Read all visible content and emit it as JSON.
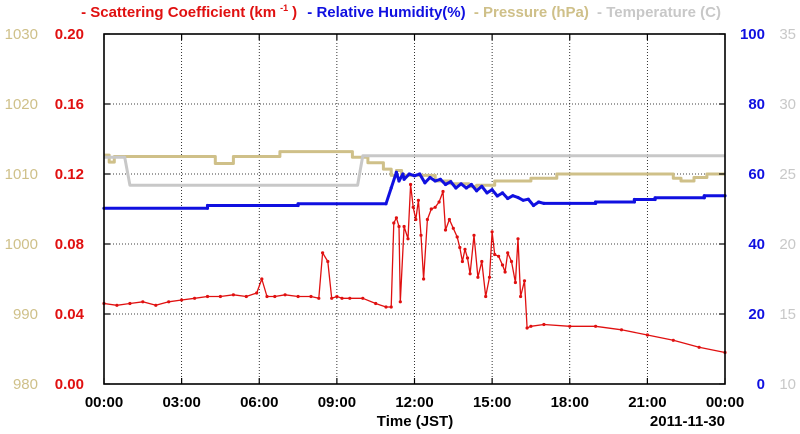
{
  "legend": [
    {
      "label": "- Scattering Coefficient (km",
      "sup": "-1",
      "close": ")",
      "color": "#e01010"
    },
    {
      "label": "- Relative Humidity(%)",
      "color": "#1010e0"
    },
    {
      "label": "- Pressure (hPa)",
      "color": "#cfc089"
    },
    {
      "label": "- Temperature (C)",
      "color": "#c8c8c8"
    }
  ],
  "chart_data": {
    "type": "line",
    "xlabel": "Time (JST)",
    "date_label": "2011-11-30",
    "x_ticks": [
      "00:00",
      "03:00",
      "06:00",
      "09:00",
      "12:00",
      "15:00",
      "18:00",
      "21:00",
      "00:00"
    ],
    "xlim": [
      0,
      24
    ],
    "grid": true,
    "axes": {
      "pressure": {
        "ticks": [
          "980",
          "990",
          "1000",
          "1010",
          "1020",
          "1030"
        ],
        "range": [
          980,
          1030
        ],
        "color": "#cfc089"
      },
      "scattering": {
        "ticks": [
          "0.00",
          "0.04",
          "0.08",
          "0.12",
          "0.16",
          "0.20"
        ],
        "range": [
          0,
          0.2
        ],
        "color": "#e01010"
      },
      "humidity": {
        "ticks": [
          "0",
          "20",
          "40",
          "60",
          "80",
          "100"
        ],
        "range": [
          0,
          100
        ],
        "color": "#1010e0"
      },
      "temperature": {
        "ticks": [
          "10",
          "15",
          "20",
          "25",
          "30",
          "35"
        ],
        "range": [
          10,
          35
        ],
        "color": "#c8c8c8"
      }
    },
    "series": [
      {
        "name": "Pressure (hPa)",
        "axis": "pressure",
        "color": "#cfc089",
        "x": [
          0,
          0.2,
          0.2,
          0.4,
          0.4,
          4.3,
          4.3,
          5.0,
          5.0,
          6.8,
          6.8,
          9.6,
          9.6,
          10.2,
          10.2,
          10.8,
          10.8,
          11.1,
          11.1,
          11.3,
          11.3,
          11.5,
          11.5,
          12.8,
          12.8,
          13.4,
          13.4,
          14.1,
          14.1,
          14.4,
          14.4,
          15.1,
          15.1,
          16.5,
          16.5,
          17.5,
          17.5,
          22.0,
          22.0,
          22.3,
          22.3,
          22.8,
          22.8,
          23.3,
          23.3,
          24
        ],
        "y": [
          1012.7,
          1012.7,
          1011.7,
          1011.7,
          1012.5,
          1012.5,
          1011.5,
          1011.5,
          1012.5,
          1012.5,
          1013.2,
          1013.2,
          1012.4,
          1012.4,
          1011.6,
          1011.6,
          1010.7,
          1010.7,
          1009.8,
          1009.8,
          1010.5,
          1010.5,
          1009.8,
          1009.8,
          1009.0,
          1009.0,
          1008.6,
          1008.6,
          1008.2,
          1008.2,
          1008.4,
          1008.4,
          1009.0,
          1009.0,
          1009.4,
          1009.4,
          1010.0,
          1010.0,
          1009.4,
          1009.4,
          1009.0,
          1009.0,
          1009.5,
          1009.5,
          1010.0,
          1010.0
        ]
      },
      {
        "name": "Temperature (C)",
        "axis": "temperature",
        "color": "#c8c8c8",
        "x": [
          0,
          0.8,
          1.0,
          9.8,
          10.0,
          24
        ],
        "y": [
          26.2,
          26.2,
          24.2,
          24.2,
          26.3,
          26.3
        ]
      },
      {
        "name": "Relative Humidity(%)",
        "axis": "humidity",
        "color": "#1010e0",
        "x": [
          0,
          4.0,
          4.0,
          7.5,
          7.5,
          10.9,
          11.1,
          11.3,
          11.4,
          11.55,
          11.6,
          11.8,
          12.0,
          12.2,
          12.4,
          12.6,
          12.8,
          13.0,
          13.2,
          13.4,
          13.6,
          13.8,
          14.0,
          14.2,
          14.4,
          14.6,
          14.8,
          15.0,
          15.2,
          15.4,
          15.6,
          15.8,
          16.0,
          16.2,
          16.4,
          16.6,
          16.8,
          17.0,
          18.0,
          19.0,
          19.0,
          20.5,
          20.5,
          21.3,
          21.3,
          23.2,
          23.2,
          24
        ],
        "y": [
          50.2,
          50.2,
          51.0,
          51.0,
          51.5,
          51.5,
          56.0,
          60.5,
          58.0,
          60.0,
          58.5,
          60.0,
          59.5,
          60.0,
          57.5,
          59.0,
          58.0,
          58.5,
          57.0,
          57.8,
          56.0,
          57.2,
          56.0,
          57.0,
          55.2,
          56.5,
          54.6,
          55.5,
          53.7,
          54.6,
          53.0,
          53.8,
          53.3,
          52.5,
          52.8,
          51.0,
          52.0,
          51.6,
          51.6,
          51.6,
          52.0,
          52.0,
          52.7,
          52.7,
          53.2,
          53.2,
          53.8,
          53.8
        ]
      },
      {
        "name": "Scattering Coefficient",
        "axis": "scattering",
        "color": "#e01010",
        "x": [
          0,
          0.5,
          1.0,
          1.5,
          2.0,
          2.5,
          3.0,
          3.5,
          4.0,
          4.5,
          5.0,
          5.5,
          5.9,
          6.1,
          6.3,
          6.6,
          7.0,
          7.5,
          8.0,
          8.3,
          8.45,
          8.65,
          8.8,
          9.0,
          9.2,
          9.5,
          10.0,
          10.5,
          10.9,
          11.1,
          11.2,
          11.3,
          11.4,
          11.45,
          11.6,
          11.75,
          11.85,
          11.95,
          12.05,
          12.15,
          12.25,
          12.35,
          12.5,
          12.65,
          12.8,
          12.95,
          13.1,
          13.2,
          13.35,
          13.5,
          13.65,
          13.75,
          13.85,
          13.95,
          14.05,
          14.15,
          14.3,
          14.45,
          14.6,
          14.75,
          14.9,
          15.0,
          15.1,
          15.25,
          15.4,
          15.5,
          15.6,
          15.75,
          15.9,
          16.0,
          16.1,
          16.25,
          16.35,
          16.5,
          17.0,
          18.0,
          19.0,
          20.0,
          21.0,
          22.0,
          23.0,
          24
        ],
        "y": [
          0.046,
          0.045,
          0.046,
          0.047,
          0.045,
          0.047,
          0.048,
          0.049,
          0.05,
          0.05,
          0.051,
          0.05,
          0.052,
          0.06,
          0.05,
          0.05,
          0.051,
          0.05,
          0.05,
          0.049,
          0.075,
          0.07,
          0.049,
          0.05,
          0.049,
          0.049,
          0.049,
          0.046,
          0.044,
          0.044,
          0.092,
          0.095,
          0.09,
          0.047,
          0.09,
          0.083,
          0.114,
          0.101,
          0.094,
          0.105,
          0.085,
          0.06,
          0.094,
          0.1,
          0.101,
          0.104,
          0.11,
          0.088,
          0.094,
          0.089,
          0.084,
          0.078,
          0.07,
          0.077,
          0.072,
          0.063,
          0.085,
          0.061,
          0.07,
          0.05,
          0.061,
          0.087,
          0.074,
          0.073,
          0.068,
          0.064,
          0.075,
          0.07,
          0.058,
          0.083,
          0.05,
          0.059,
          0.032,
          0.033,
          0.034,
          0.033,
          0.033,
          0.031,
          0.028,
          0.025,
          0.021,
          0.018
        ]
      }
    ]
  }
}
